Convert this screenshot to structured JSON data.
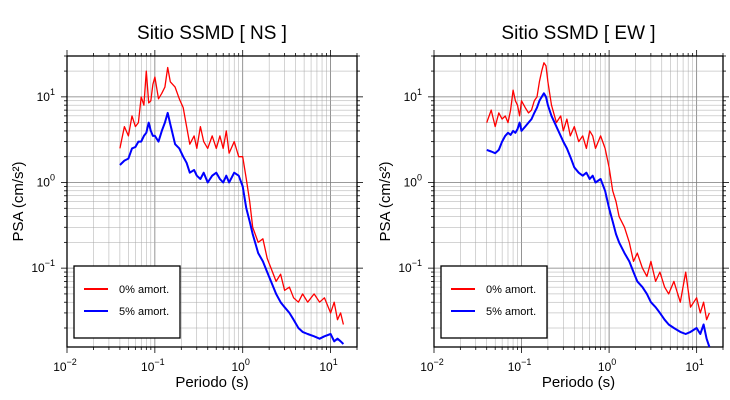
{
  "chart_data": [
    {
      "type": "line",
      "title": "Sitio SSMD [ NS ]",
      "xlabel": "Periodo (s)",
      "ylabel": "PSA (cm/s²)",
      "xscale": "log",
      "yscale": "log",
      "xlim": [
        0.01,
        20
      ],
      "ylim": [
        0.012,
        30
      ],
      "grid": true,
      "legend_position": "bottom-left",
      "x_ticks": [
        {
          "value": 0.01,
          "base": "10",
          "exp": "−2"
        },
        {
          "value": 0.1,
          "base": "10",
          "exp": "−1"
        },
        {
          "value": 1,
          "base": "10",
          "exp": "0"
        },
        {
          "value": 10,
          "base": "10",
          "exp": "1"
        }
      ],
      "y_ticks": [
        {
          "value": 0.1,
          "base": "10",
          "exp": "−1"
        },
        {
          "value": 1,
          "base": "10",
          "exp": "0"
        },
        {
          "value": 10,
          "base": "10",
          "exp": "1"
        }
      ],
      "series": [
        {
          "name": "0% amort.",
          "color": "#ff0000",
          "x": [
            0.04,
            0.045,
            0.05,
            0.055,
            0.06,
            0.065,
            0.07,
            0.075,
            0.08,
            0.085,
            0.09,
            0.095,
            0.1,
            0.11,
            0.12,
            0.13,
            0.14,
            0.15,
            0.17,
            0.19,
            0.21,
            0.23,
            0.25,
            0.28,
            0.3,
            0.33,
            0.36,
            0.4,
            0.45,
            0.5,
            0.55,
            0.6,
            0.65,
            0.7,
            0.8,
            0.9,
            1.0,
            1.1,
            1.2,
            1.3,
            1.5,
            1.7,
            1.9,
            2.1,
            2.4,
            2.7,
            3.0,
            3.4,
            3.8,
            4.3,
            4.8,
            5.5,
            6.5,
            7.5,
            8.5,
            10,
            11,
            12,
            13,
            14
          ],
          "y": [
            2.5,
            4.5,
            3.5,
            6.0,
            4.5,
            5.0,
            10.0,
            8.0,
            20.0,
            8.5,
            9.0,
            14.0,
            17.0,
            9.5,
            11.0,
            13.0,
            22.0,
            15.0,
            13.0,
            9.5,
            7.5,
            4.5,
            2.8,
            3.5,
            2.5,
            4.5,
            3.0,
            2.5,
            3.5,
            2.5,
            3.5,
            2.5,
            4.0,
            2.2,
            3.0,
            2.0,
            2.0,
            1.1,
            0.6,
            0.3,
            0.2,
            0.22,
            0.13,
            0.1,
            0.07,
            0.085,
            0.055,
            0.06,
            0.045,
            0.04,
            0.05,
            0.04,
            0.05,
            0.04,
            0.045,
            0.03,
            0.04,
            0.025,
            0.03,
            0.022
          ]
        },
        {
          "name": "5% amort.",
          "color": "#0000ff",
          "x": [
            0.04,
            0.045,
            0.05,
            0.055,
            0.06,
            0.065,
            0.07,
            0.075,
            0.08,
            0.085,
            0.09,
            0.095,
            0.1,
            0.11,
            0.12,
            0.13,
            0.14,
            0.15,
            0.17,
            0.19,
            0.21,
            0.23,
            0.25,
            0.28,
            0.3,
            0.33,
            0.36,
            0.4,
            0.45,
            0.5,
            0.55,
            0.6,
            0.65,
            0.7,
            0.8,
            0.9,
            1.0,
            1.1,
            1.2,
            1.3,
            1.5,
            1.7,
            1.9,
            2.1,
            2.4,
            2.7,
            3.0,
            3.4,
            3.8,
            4.3,
            4.8,
            5.5,
            6.5,
            7.5,
            8.5,
            10,
            11,
            12,
            13,
            14
          ],
          "y": [
            1.6,
            1.8,
            1.9,
            2.5,
            2.6,
            3.0,
            3.0,
            3.5,
            3.8,
            5.0,
            4.0,
            3.5,
            3.5,
            3.0,
            4.0,
            5.0,
            6.5,
            4.8,
            2.8,
            2.5,
            2.0,
            1.7,
            1.3,
            1.4,
            1.2,
            1.1,
            1.3,
            1.0,
            1.2,
            1.3,
            1.1,
            1.0,
            1.2,
            1.0,
            1.3,
            1.2,
            0.9,
            0.5,
            0.35,
            0.25,
            0.15,
            0.12,
            0.09,
            0.07,
            0.05,
            0.04,
            0.035,
            0.03,
            0.025,
            0.02,
            0.018,
            0.017,
            0.016,
            0.015,
            0.016,
            0.017,
            0.014,
            0.015,
            0.014,
            0.013
          ]
        }
      ]
    },
    {
      "type": "line",
      "title": "Sitio SSMD [ EW ]",
      "xlabel": "Periodo (s)",
      "ylabel": "PSA (cm/s²)",
      "xscale": "log",
      "yscale": "log",
      "xlim": [
        0.01,
        20
      ],
      "ylim": [
        0.012,
        30
      ],
      "grid": true,
      "legend_position": "bottom-left",
      "x_ticks": [
        {
          "value": 0.01,
          "base": "10",
          "exp": "−2"
        },
        {
          "value": 0.1,
          "base": "10",
          "exp": "−1"
        },
        {
          "value": 1,
          "base": "10",
          "exp": "0"
        },
        {
          "value": 10,
          "base": "10",
          "exp": "1"
        }
      ],
      "y_ticks": [
        {
          "value": 0.1,
          "base": "10",
          "exp": "−1"
        },
        {
          "value": 1,
          "base": "10",
          "exp": "0"
        },
        {
          "value": 10,
          "base": "10",
          "exp": "1"
        }
      ],
      "series": [
        {
          "name": "0% amort.",
          "color": "#ff0000",
          "x": [
            0.04,
            0.045,
            0.05,
            0.055,
            0.06,
            0.065,
            0.07,
            0.075,
            0.08,
            0.085,
            0.09,
            0.095,
            0.1,
            0.11,
            0.12,
            0.13,
            0.14,
            0.15,
            0.16,
            0.17,
            0.18,
            0.19,
            0.2,
            0.22,
            0.25,
            0.28,
            0.3,
            0.33,
            0.36,
            0.4,
            0.45,
            0.5,
            0.55,
            0.6,
            0.65,
            0.7,
            0.8,
            0.9,
            1.0,
            1.1,
            1.2,
            1.3,
            1.5,
            1.7,
            1.9,
            2.1,
            2.4,
            2.7,
            3.0,
            3.4,
            3.8,
            4.3,
            4.8,
            5.5,
            6.5,
            7.5,
            8.5,
            10,
            11,
            12,
            13,
            14
          ],
          "y": [
            5.0,
            7.0,
            4.5,
            6.5,
            5.5,
            6.0,
            5.0,
            7.0,
            12.0,
            9.0,
            8.0,
            6.0,
            9.0,
            7.5,
            6.5,
            7.0,
            9.0,
            10.0,
            15.0,
            20.0,
            25.0,
            23.0,
            15.0,
            8.0,
            5.0,
            6.0,
            4.0,
            5.5,
            3.5,
            4.5,
            3.0,
            3.5,
            2.5,
            4.0,
            3.5,
            2.5,
            3.5,
            2.5,
            1.5,
            0.8,
            0.6,
            0.4,
            0.3,
            0.2,
            0.12,
            0.15,
            0.1,
            0.08,
            0.12,
            0.07,
            0.09,
            0.06,
            0.05,
            0.07,
            0.04,
            0.09,
            0.035,
            0.045,
            0.03,
            0.04,
            0.025,
            0.03
          ]
        },
        {
          "name": "5% amort.",
          "color": "#0000ff",
          "x": [
            0.04,
            0.045,
            0.05,
            0.055,
            0.06,
            0.065,
            0.07,
            0.075,
            0.08,
            0.085,
            0.09,
            0.095,
            0.1,
            0.11,
            0.12,
            0.13,
            0.14,
            0.15,
            0.16,
            0.17,
            0.18,
            0.19,
            0.2,
            0.22,
            0.25,
            0.28,
            0.3,
            0.33,
            0.36,
            0.4,
            0.45,
            0.5,
            0.55,
            0.6,
            0.65,
            0.7,
            0.8,
            0.9,
            1.0,
            1.1,
            1.2,
            1.3,
            1.5,
            1.7,
            1.9,
            2.1,
            2.4,
            2.7,
            3.0,
            3.4,
            3.8,
            4.3,
            4.8,
            5.5,
            6.5,
            7.5,
            8.5,
            10,
            11,
            12,
            13,
            14
          ],
          "y": [
            2.4,
            2.3,
            2.2,
            2.4,
            3.0,
            3.5,
            3.8,
            3.6,
            4.0,
            3.8,
            4.2,
            5.0,
            4.0,
            4.5,
            5.0,
            5.5,
            6.5,
            7.5,
            9.0,
            10.0,
            11.0,
            10.0,
            8.0,
            6.0,
            4.5,
            3.5,
            3.0,
            2.5,
            2.0,
            1.5,
            1.3,
            1.2,
            1.3,
            1.1,
            1.2,
            1.0,
            1.1,
            0.8,
            0.5,
            0.35,
            0.25,
            0.2,
            0.15,
            0.12,
            0.09,
            0.07,
            0.06,
            0.05,
            0.04,
            0.035,
            0.03,
            0.025,
            0.022,
            0.02,
            0.018,
            0.017,
            0.018,
            0.02,
            0.017,
            0.022,
            0.015,
            0.012
          ]
        }
      ]
    }
  ]
}
